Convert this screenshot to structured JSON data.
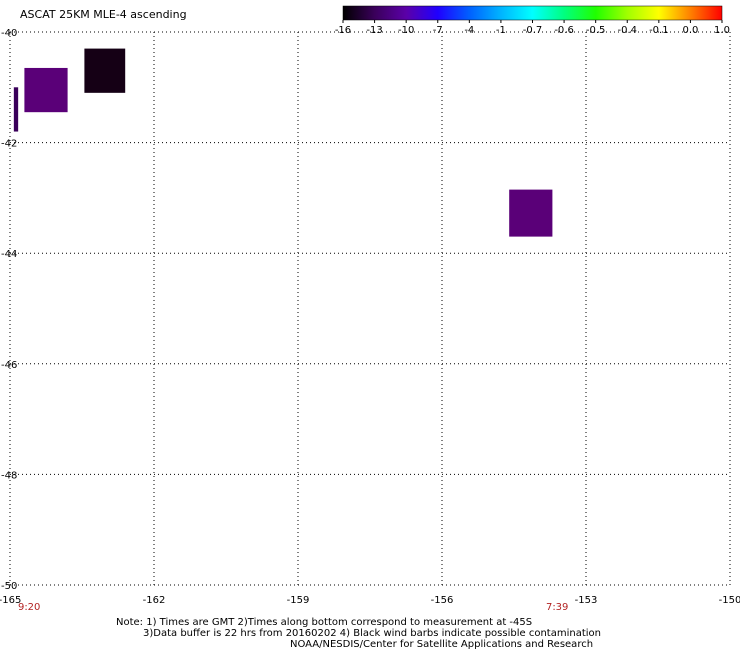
{
  "title": "ASCAT 25KM MLE-4 ascending",
  "colorbar": {
    "labels": [
      "-16",
      "-13",
      "-10",
      "-7",
      "-4",
      "-1",
      "-0.7",
      "-0.6",
      "-0.5",
      "-0.4",
      "-0.1",
      "0.0",
      "1.0"
    ],
    "stops": [
      "#000000",
      "#3a005a",
      "#5b00a8",
      "#2000ff",
      "#0060ff",
      "#00b4ff",
      "#00ffff",
      "#00ff80",
      "#20ff00",
      "#a0ff00",
      "#ffff00",
      "#ff8000",
      "#ff0000"
    ]
  },
  "map": {
    "lon_range": [
      -165,
      -150
    ],
    "lat_range": [
      -50,
      -40
    ],
    "x_ticks": [
      "-165",
      "-162",
      "-159",
      "-156",
      "-153",
      "-150"
    ],
    "y_ticks": [
      "-40",
      "-42",
      "-44",
      "-46",
      "-48",
      "-50"
    ],
    "time_labels": [
      {
        "text": "9:20",
        "lon": -164.6
      },
      {
        "text": "7:39",
        "lon": -153.6
      }
    ],
    "cells": [
      {
        "lon_min": -164.92,
        "lon_max": -164.83,
        "lat_min": -41.8,
        "lat_max": -41.0,
        "color": "#3a005a"
      },
      {
        "lon_min": -164.7,
        "lon_max": -163.8,
        "lat_min": -41.45,
        "lat_max": -40.65,
        "color": "#5a0078"
      },
      {
        "lon_min": -163.45,
        "lon_max": -162.6,
        "lat_min": -41.1,
        "lat_max": -40.3,
        "color": "#150015"
      },
      {
        "lon_min": -154.6,
        "lon_max": -153.7,
        "lat_min": -43.7,
        "lat_max": -42.85,
        "color": "#5a0078"
      }
    ]
  },
  "notes": {
    "line1": "Note: 1) Times are GMT 2)Times along bottom correspond to measurement at -45S",
    "line2": "3)Data buffer is 22 hrs from 20160202 4) Black wind barbs indicate possible contamination",
    "line3": "NOAA/NESDIS/Center for Satellite Applications and Research"
  }
}
